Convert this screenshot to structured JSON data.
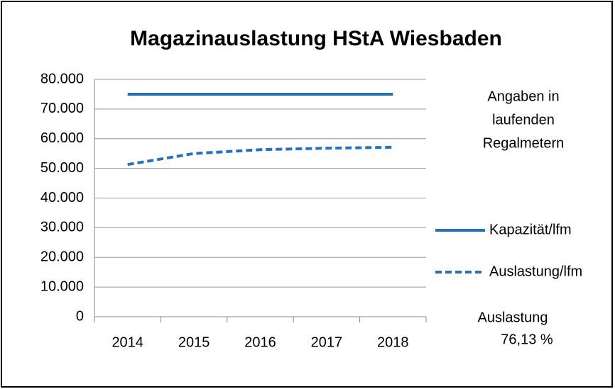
{
  "chart_data": {
    "type": "line",
    "title": "Magazinauslastung HStA Wiesbaden",
    "categories": [
      "2014",
      "2015",
      "2016",
      "2017",
      "2018"
    ],
    "series": [
      {
        "name": "Kapazität/lfm",
        "color": "#2672b8",
        "dash": false,
        "values": [
          75000,
          75000,
          75000,
          75000,
          75000
        ]
      },
      {
        "name": "Auslastung/lfm",
        "color": "#2672b8",
        "dash": true,
        "values": [
          51300,
          55000,
          56300,
          56800,
          57100
        ]
      }
    ],
    "ylim": [
      0,
      80000
    ],
    "yticks": [
      0,
      {
        "value": 10000,
        "label": "10.000"
      },
      {
        "value": 20000,
        "label": "20.000"
      },
      {
        "value": 30000,
        "label": "30.000"
      },
      {
        "value": 40000,
        "label": "40.000"
      },
      {
        "value": 50000,
        "label": "50.000"
      },
      {
        "value": 60000,
        "label": "60.000"
      },
      {
        "value": 70000,
        "label": "70.000"
      },
      {
        "value": 80000,
        "label": "80.000"
      }
    ],
    "grid": true,
    "legend": "right",
    "note": [
      "Angaben in",
      "laufenden",
      "Regalmetern"
    ],
    "summary": [
      "Auslastung",
      "76,13 %"
    ]
  }
}
